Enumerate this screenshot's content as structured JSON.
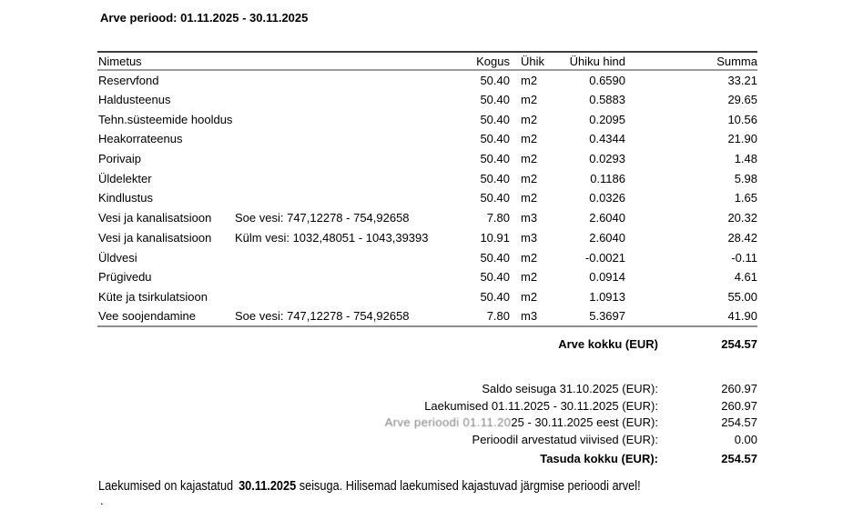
{
  "title": "Arve periood: 01.11.2025 - 30.11.2025",
  "table": {
    "headers": [
      "Nimetus",
      "Kogus",
      "Ühik",
      "Ühiku hind",
      "Summa"
    ],
    "rows": [
      {
        "name": "Reservfond",
        "detail": "",
        "qty": "50.40",
        "unit": "m2",
        "price": "0.6590",
        "sum": "33.21"
      },
      {
        "name": "Haldusteenus",
        "detail": "",
        "qty": "50.40",
        "unit": "m2",
        "price": "0.5883",
        "sum": "29.65"
      },
      {
        "name": "Tehn.süsteemide hooldus",
        "detail": "",
        "qty": "50.40",
        "unit": "m2",
        "price": "0.2095",
        "sum": "10.56"
      },
      {
        "name": "Heakorrateenus",
        "detail": "",
        "qty": "50.40",
        "unit": "m2",
        "price": "0.4344",
        "sum": "21.90"
      },
      {
        "name": "Porivaip",
        "detail": "",
        "qty": "50.40",
        "unit": "m2",
        "price": "0.0293",
        "sum": "1.48"
      },
      {
        "name": "Üldelekter",
        "detail": "",
        "qty": "50.40",
        "unit": "m2",
        "price": "0.1186",
        "sum": "5.98"
      },
      {
        "name": "Kindlustus",
        "detail": "",
        "qty": "50.40",
        "unit": "m2",
        "price": "0.0326",
        "sum": "1.65"
      },
      {
        "name": "Vesi ja kanalisatsioon",
        "detail": "Soe vesi: 747,12278 - 754,92658",
        "qty": "7.80",
        "unit": "m3",
        "price": "2.6040",
        "sum": "20.32"
      },
      {
        "name": "Vesi ja kanalisatsioon",
        "detail": "Külm vesi: 1032,48051 - 1043,39393",
        "qty": "10.91",
        "unit": "m3",
        "price": "2.6040",
        "sum": "28.42"
      },
      {
        "name": "Üldvesi",
        "detail": "",
        "qty": "50.40",
        "unit": "m2",
        "price": "-0.0021",
        "sum": "-0.11"
      },
      {
        "name": "Prügivedu",
        "detail": "",
        "qty": "50.40",
        "unit": "m2",
        "price": "0.0914",
        "sum": "4.61"
      },
      {
        "name": "Küte ja tsirkulatsioon",
        "detail": "",
        "qty": "50.40",
        "unit": "m2",
        "price": "1.0913",
        "sum": "55.00"
      },
      {
        "name": "Vee soojendamine",
        "detail": "Soe vesi: 747,12278 - 754,92658",
        "qty": "7.80",
        "unit": "m3",
        "price": "5.3697",
        "sum": "41.90"
      }
    ],
    "total_label": "Arve kokku (EUR)",
    "total_value": "254.57"
  },
  "summary": {
    "lines": [
      {
        "label": "Saldo seisuga 31.10.2025 (EUR):",
        "value": "260.97",
        "bold": false
      },
      {
        "label": "Laekumised 01.11.2025 - 30.11.2025 (EUR):",
        "value": "260.97",
        "bold": false
      },
      {
        "label": "Arve perioodi 01.11.2025 - 30.11.2025 eest (EUR):",
        "value": "254.57",
        "bold": false,
        "label_glitch": "Arve perioodi 01.11.20",
        "label_rest": "25 - 30.11.2025 eest (EUR):"
      },
      {
        "label": "Perioodil arvestatud viivised (EUR):",
        "value": "0.00",
        "bold": false
      },
      {
        "label": "Tasuda kokku (EUR):",
        "value": "254.57",
        "bold": true
      }
    ]
  },
  "footer": {
    "text_before": "Laekumised on kajastatud",
    "date_bold": "30.11.2025",
    "text_after": " seisuga. Hilisemad laekumised kajastuvad järgmise perioodi arvel!",
    "trailing_dot": "."
  },
  "colors": {
    "background": "#ffffff",
    "text": "#000000",
    "rule_dark": "#3d3d3d",
    "rule_gray": "#9c9c9c",
    "rule_bottom": "#8f8f8f"
  }
}
